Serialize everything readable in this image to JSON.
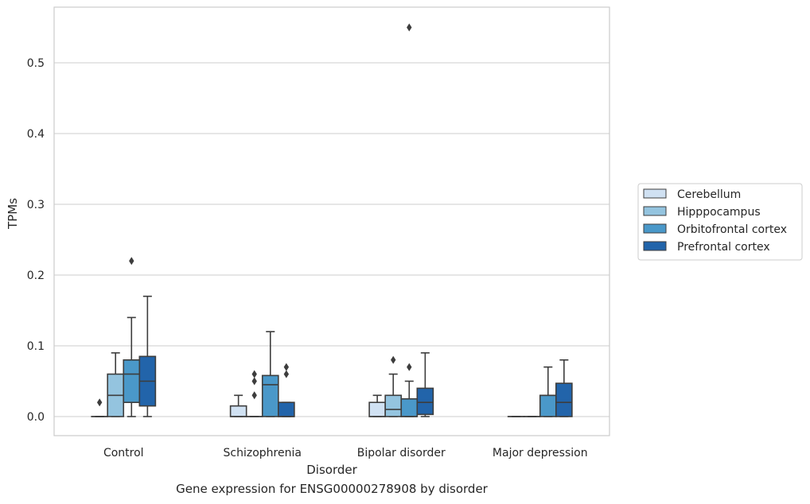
{
  "caption": "Gene expression for ENSG00000278908 by disorder",
  "chart_data": {
    "type": "box",
    "xlabel": "Disorder",
    "ylabel": "TPMs",
    "ylim": [
      -0.027,
      0.58
    ],
    "yticks": [
      0.0,
      0.1,
      0.2,
      0.3,
      0.4,
      0.5
    ],
    "ytick_labels": [
      "0.0",
      "0.1",
      "0.2",
      "0.3",
      "0.4",
      "0.5"
    ],
    "grid": "horizontal",
    "legend_position": "right",
    "categories": [
      "Control",
      "Schizophrenia",
      "Bipolar disorder",
      "Major depression"
    ],
    "series": [
      {
        "name": "Cerebellum",
        "color": "#d0e1f2",
        "boxes": [
          {
            "whislo": 0.0,
            "q1": 0.0,
            "med": 0.0,
            "q3": 0.0,
            "whishi": 0.0,
            "fliers": [
              0.02
            ]
          },
          {
            "whislo": 0.0,
            "q1": 0.0,
            "med": 0.0,
            "q3": 0.015,
            "whishi": 0.03,
            "fliers": []
          },
          {
            "whislo": 0.0,
            "q1": 0.0,
            "med": 0.0,
            "q3": 0.02,
            "whishi": 0.03,
            "fliers": []
          },
          {
            "whislo": 0.0,
            "q1": 0.0,
            "med": 0.0,
            "q3": 0.0,
            "whishi": 0.0,
            "fliers": []
          }
        ]
      },
      {
        "name": "Hipppocampus",
        "color": "#94c4df",
        "boxes": [
          {
            "whislo": 0.0,
            "q1": 0.0,
            "med": 0.03,
            "q3": 0.06,
            "whishi": 0.09,
            "fliers": []
          },
          {
            "whislo": 0.0,
            "q1": 0.0,
            "med": 0.0,
            "q3": 0.0,
            "whishi": 0.0,
            "fliers": [
              0.03,
              0.05,
              0.06
            ]
          },
          {
            "whislo": 0.0,
            "q1": 0.0,
            "med": 0.01,
            "q3": 0.03,
            "whishi": 0.06,
            "fliers": [
              0.08
            ]
          },
          {
            "whislo": 0.0,
            "q1": 0.0,
            "med": 0.0,
            "q3": 0.0,
            "whishi": 0.0,
            "fliers": []
          }
        ]
      },
      {
        "name": "Orbitofrontal cortex",
        "color": "#4a98c9",
        "boxes": [
          {
            "whislo": 0.0,
            "q1": 0.02,
            "med": 0.06,
            "q3": 0.08,
            "whishi": 0.14,
            "fliers": [
              0.22
            ]
          },
          {
            "whislo": 0.0,
            "q1": 0.0,
            "med": 0.045,
            "q3": 0.058,
            "whishi": 0.12,
            "fliers": []
          },
          {
            "whislo": 0.0,
            "q1": 0.0,
            "med": 0.0,
            "q3": 0.025,
            "whishi": 0.05,
            "fliers": [
              0.07,
              0.55
            ]
          },
          {
            "whislo": 0.0,
            "q1": 0.0,
            "med": 0.03,
            "q3": 0.03,
            "whishi": 0.07,
            "fliers": []
          }
        ]
      },
      {
        "name": "Prefrontal cortex",
        "color": "#2264aa",
        "boxes": [
          {
            "whislo": 0.0,
            "q1": 0.015,
            "med": 0.05,
            "q3": 0.085,
            "whishi": 0.17,
            "fliers": []
          },
          {
            "whislo": 0.0,
            "q1": 0.0,
            "med": 0.0,
            "q3": 0.02,
            "whishi": 0.02,
            "fliers": [
              0.06,
              0.07
            ]
          },
          {
            "whislo": 0.0,
            "q1": 0.003,
            "med": 0.02,
            "q3": 0.04,
            "whishi": 0.09,
            "fliers": []
          },
          {
            "whislo": 0.0,
            "q1": 0.0,
            "med": 0.02,
            "q3": 0.047,
            "whishi": 0.08,
            "fliers": []
          }
        ]
      }
    ]
  }
}
